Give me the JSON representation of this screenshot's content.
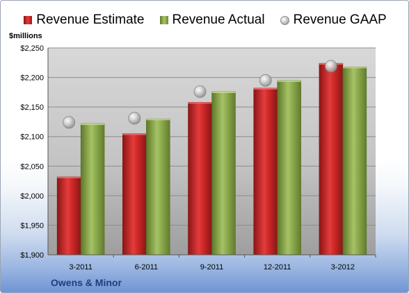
{
  "chart_data": {
    "type": "bar",
    "categories": [
      "3-2011",
      "6-2011",
      "9-2011",
      "12-2011",
      "3-2012"
    ],
    "series": [
      {
        "name": "Revenue Estimate",
        "values": [
          2032,
          2105,
          2158,
          2182,
          2224
        ],
        "color": "#cc2222"
      },
      {
        "name": "Revenue Actual",
        "values": [
          2122,
          2130,
          2176,
          2195,
          2218
        ],
        "color": "#8fad4f"
      }
    ],
    "markers": {
      "name": "Revenue GAAP",
      "values": [
        2124,
        2131,
        2176,
        2195,
        2219
      ],
      "style": "gray-sphere"
    },
    "ylabel": "$millions",
    "ylim": [
      1900,
      2250
    ],
    "yticks": [
      "$1,900",
      "$1,950",
      "$2,000",
      "$2,050",
      "$2,100",
      "$2,150",
      "$2,200",
      "$2,250"
    ],
    "legend_position": "top",
    "grid": true
  },
  "company": "Owens & Minor"
}
